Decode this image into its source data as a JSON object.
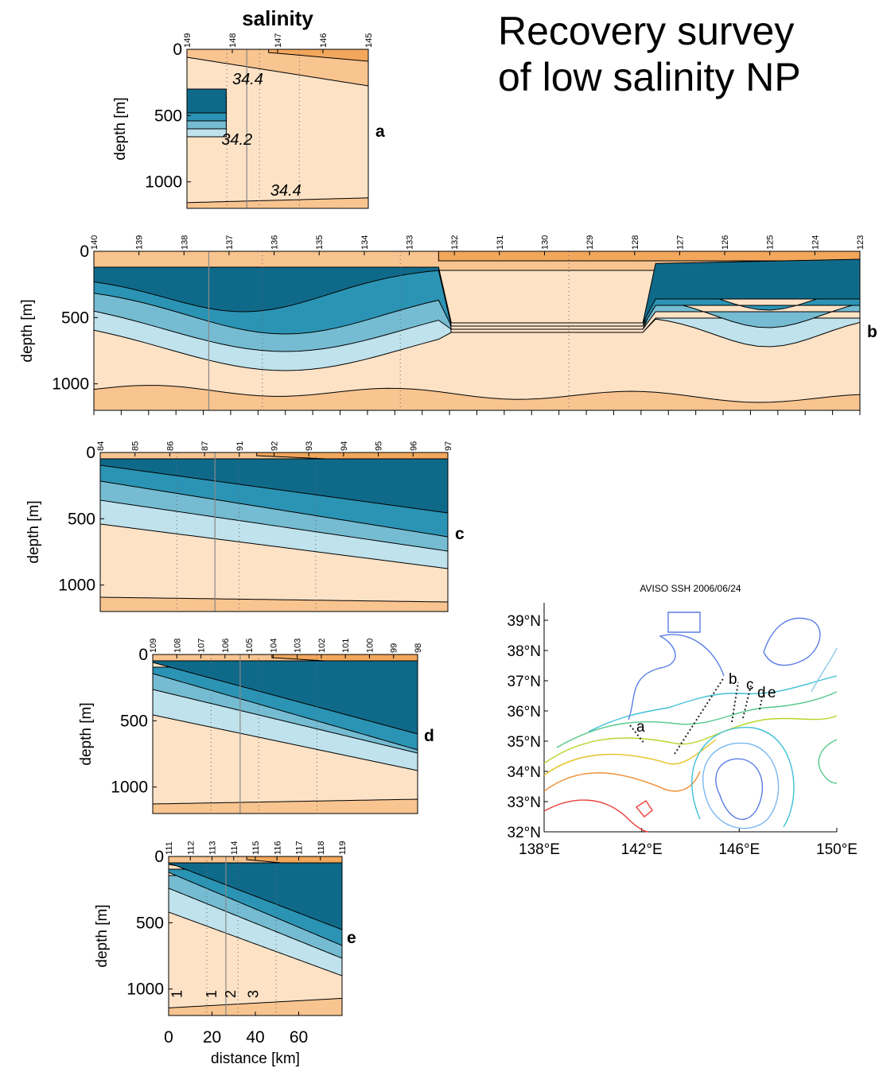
{
  "headline": {
    "line1": "Recovery survey",
    "line2": "of low salinity NP"
  },
  "chart_data": [
    {
      "type": "contour",
      "panel": "a",
      "title": "salinity",
      "ylabel": "depth [m]",
      "ylim": [
        0,
        1200
      ],
      "yticks": [
        0,
        500,
        1000
      ],
      "station_labels": [
        "149",
        "148",
        "147",
        "146",
        "145"
      ],
      "contour_labels": [
        "34.4",
        "34.2",
        "34.4"
      ]
    },
    {
      "type": "contour",
      "panel": "b",
      "ylabel": "depth [m]",
      "ylim": [
        0,
        1200
      ],
      "yticks": [
        0,
        500,
        1000
      ],
      "station_labels": [
        "140",
        "139",
        "138",
        "137",
        "136",
        "135",
        "134",
        "133",
        "132",
        "131",
        "130",
        "129",
        "128",
        "127",
        "126",
        "125",
        "124",
        "123"
      ]
    },
    {
      "type": "contour",
      "panel": "c",
      "ylabel": "depth [m]",
      "ylim": [
        0,
        1200
      ],
      "yticks": [
        0,
        500,
        1000
      ],
      "station_labels": [
        "84",
        "85",
        "86",
        "87",
        "91",
        "92",
        "93",
        "94",
        "95",
        "96",
        "97"
      ]
    },
    {
      "type": "contour",
      "panel": "d",
      "ylabel": "depth [m]",
      "ylim": [
        0,
        1200
      ],
      "yticks": [
        0,
        500,
        1000
      ],
      "station_labels": [
        "109",
        "108",
        "107",
        "106",
        "105",
        "104",
        "103",
        "102",
        "101",
        "100",
        "99",
        "98"
      ]
    },
    {
      "type": "contour",
      "panel": "e",
      "ylabel": "depth [m]",
      "xlabel": "distance [km]",
      "ylim": [
        0,
        1200
      ],
      "xlim": [
        0,
        80
      ],
      "yticks": [
        0,
        500,
        1000
      ],
      "xticks": [
        0,
        20,
        40,
        60
      ],
      "station_labels": [
        "111",
        "112",
        "113",
        "114",
        "115",
        "116",
        "117",
        "118",
        "119"
      ],
      "bottom_labels": [
        "1",
        "1",
        "2",
        "3"
      ]
    },
    {
      "type": "map",
      "title": "AVISO SSH 2006/06/24",
      "lat_labels": [
        "39°N",
        "38°N",
        "37°N",
        "36°N",
        "35°N",
        "34°N",
        "33°N",
        "32°N"
      ],
      "lon_labels": [
        "138°E",
        "142°E",
        "146°E",
        "150°E"
      ],
      "track_labels": [
        "a",
        "b",
        "c",
        "d",
        "e"
      ]
    }
  ],
  "colors": {
    "fresh_deep": "#0f6a8a",
    "fresh_mid": "#2b94b4",
    "fresh_light": "#75bcd2",
    "fresh_pale": "#bfe2ec",
    "salty_pale": "#fde2c6",
    "salty_mid": "#f8c490",
    "salty_deep": "#f2a75c"
  }
}
